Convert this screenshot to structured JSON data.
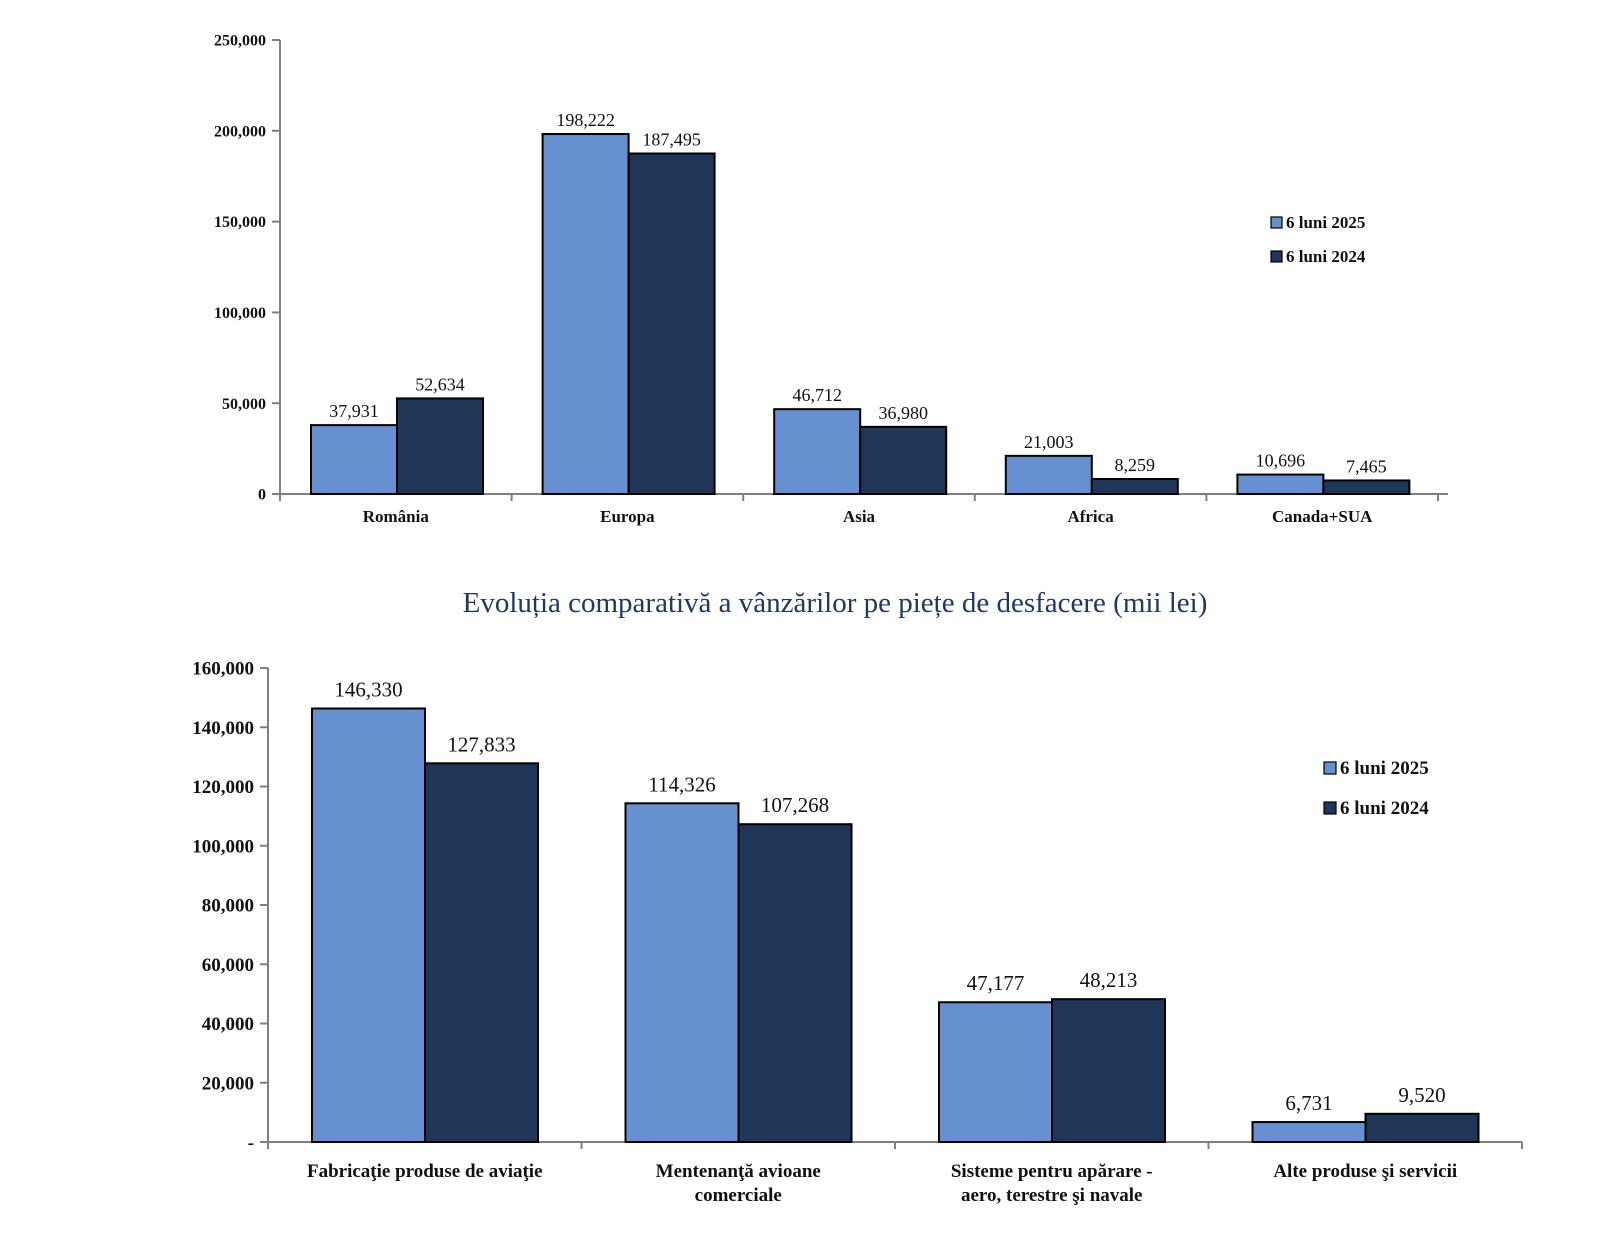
{
  "chart_data": [
    {
      "type": "bar",
      "title": "",
      "categories": [
        "România",
        "Europa",
        "Asia",
        "Africa",
        "Canada+SUA"
      ],
      "series": [
        {
          "name": "6 luni 2025",
          "values": [
            37931,
            198222,
            46712,
            21003,
            10696
          ],
          "labels": [
            "37,931",
            "198,222",
            "46,712",
            "21,003",
            "10,696"
          ]
        },
        {
          "name": "6 luni 2024",
          "values": [
            52634,
            187495,
            36980,
            8259,
            7465
          ],
          "labels": [
            "52,634",
            "187,495",
            "36,980",
            "8,259",
            "7,465"
          ]
        }
      ],
      "ylim": [
        0,
        250000
      ],
      "yticks": [
        0,
        50000,
        100000,
        150000,
        200000,
        250000
      ],
      "ytick_labels": [
        "0",
        "50,000",
        "100,000",
        "150,000",
        "200,000",
        "250,000"
      ],
      "legend_position": "right",
      "colors": [
        "#6790d0",
        "#203659"
      ],
      "grid": false
    },
    {
      "type": "bar",
      "title": "Evoluția comparativă a vânzărilor pe piețe de desfacere (mii lei)",
      "categories": [
        [
          "Fabricaţie produse de aviaţie"
        ],
        [
          "Mentenanţă avioane",
          "comerciale"
        ],
        [
          "Sisteme pentru apărare -",
          "aero, terestre şi navale"
        ],
        [
          "Alte produse şi servicii"
        ]
      ],
      "series": [
        {
          "name": "6 luni 2025",
          "values": [
            146330,
            114326,
            47177,
            6731
          ],
          "labels": [
            "146,330",
            "114,326",
            "47,177",
            "6,731"
          ]
        },
        {
          "name": "6 luni 2024",
          "values": [
            127833,
            107268,
            48213,
            9520
          ],
          "labels": [
            "127,833",
            "107,268",
            "48,213",
            "9,520"
          ]
        }
      ],
      "ylim": [
        0,
        160000
      ],
      "yticks": [
        0,
        20000,
        40000,
        60000,
        80000,
        100000,
        120000,
        140000,
        160000
      ],
      "ytick_labels": [
        "-",
        "20,000",
        "40,000",
        "60,000",
        "80,000",
        "100,000",
        "120,000",
        "140,000",
        "160,000"
      ],
      "legend_position": "top-right",
      "colors": [
        "#6790d0",
        "#203659"
      ],
      "grid": false
    }
  ]
}
